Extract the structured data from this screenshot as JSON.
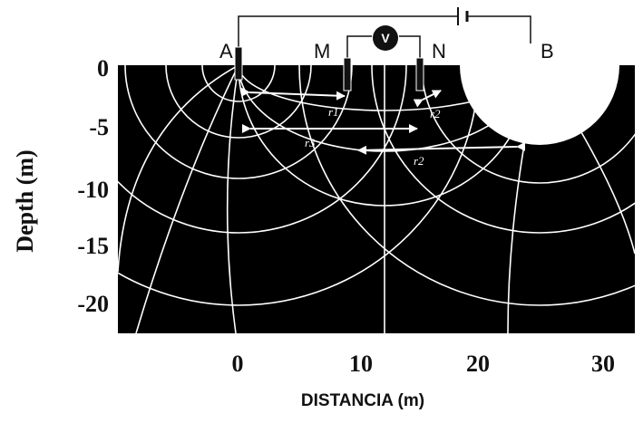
{
  "electrodes": [
    "A",
    "M",
    "N",
    "B"
  ],
  "meter": "V",
  "distance_labels": [
    "r1",
    "r2",
    "r3",
    "r2"
  ],
  "y_axis": {
    "title": "Depth (m)",
    "ticks": [
      "0",
      "-5",
      "-10",
      "-15",
      "-20"
    ]
  },
  "x_axis": {
    "title": "DISTANCIA (m)",
    "ticks": [
      "0",
      "10",
      "20",
      "30"
    ]
  }
}
